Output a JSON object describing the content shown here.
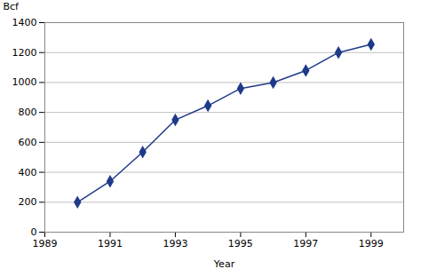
{
  "chart_data": {
    "type": "line",
    "x": [
      1990,
      1991,
      1992,
      1993,
      1994,
      1995,
      1996,
      1997,
      1998,
      1999
    ],
    "values": [
      200,
      340,
      535,
      750,
      845,
      960,
      1000,
      1080,
      1200,
      1255
    ],
    "color": "#1F3A8A",
    "marker": "diamond",
    "xlabel": "Year",
    "ylabel": "Bcf",
    "xlim": [
      1989,
      2000
    ],
    "ylim": [
      0,
      1400
    ],
    "xticks": [
      1989,
      1991,
      1993,
      1995,
      1997,
      1999
    ],
    "yticks": [
      0,
      200,
      400,
      600,
      800,
      1000,
      1200,
      1400
    ],
    "grid": true
  }
}
